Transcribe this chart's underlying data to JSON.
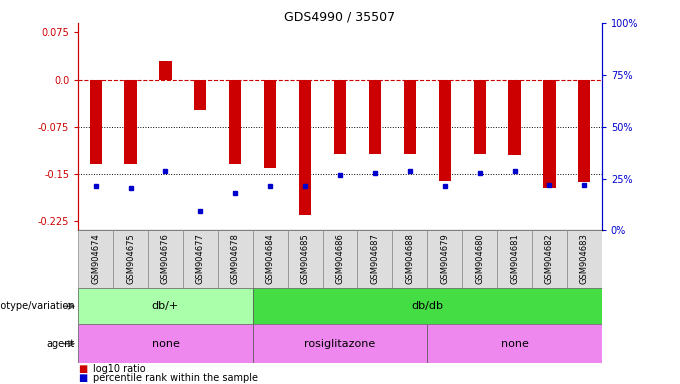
{
  "title": "GDS4990 / 35507",
  "samples": [
    "GSM904674",
    "GSM904675",
    "GSM904676",
    "GSM904677",
    "GSM904678",
    "GSM904684",
    "GSM904685",
    "GSM904686",
    "GSM904687",
    "GSM904688",
    "GSM904679",
    "GSM904680",
    "GSM904681",
    "GSM904682",
    "GSM904683"
  ],
  "log10_ratio": [
    -0.135,
    -0.135,
    0.03,
    -0.048,
    -0.135,
    -0.14,
    -0.215,
    -0.118,
    -0.118,
    -0.118,
    -0.162,
    -0.118,
    -0.12,
    -0.173,
    -0.163
  ],
  "percentile": [
    0.215,
    0.205,
    0.285,
    0.095,
    0.178,
    0.215,
    0.215,
    0.268,
    0.278,
    0.288,
    0.215,
    0.278,
    0.285,
    0.218,
    0.218
  ],
  "ylim_left": [
    -0.24,
    0.09
  ],
  "yticks_left": [
    0.075,
    0.0,
    -0.075,
    -0.15,
    -0.225
  ],
  "yticks_right_pct": [
    1.0,
    0.75,
    0.5,
    0.25,
    0.0
  ],
  "yticks_right_labels": [
    "100%",
    "75%",
    "50%",
    "25%",
    "0%"
  ],
  "bar_color": "#cc0000",
  "dot_color": "#0000cc",
  "dashed_color": "#cc0000",
  "dotted_color": "#000000",
  "bar_width": 0.35,
  "genotype_groups": [
    {
      "label": "db/+",
      "start": 0,
      "end": 5,
      "color": "#aaffaa"
    },
    {
      "label": "db/db",
      "start": 5,
      "end": 15,
      "color": "#44dd44"
    }
  ],
  "agent_groups": [
    {
      "label": "none",
      "start": 0,
      "end": 5,
      "color": "#ee88ee"
    },
    {
      "label": "rosiglitazone",
      "start": 5,
      "end": 10,
      "color": "#ee88ee"
    },
    {
      "label": "none",
      "start": 10,
      "end": 15,
      "color": "#ee88ee"
    }
  ],
  "legend_items": [
    {
      "color": "#cc0000",
      "label": "log10 ratio"
    },
    {
      "color": "#0000cc",
      "label": "percentile rank within the sample"
    }
  ],
  "title_fontsize": 9,
  "tick_fontsize": 7,
  "label_fontsize": 7,
  "sample_fontsize": 6
}
